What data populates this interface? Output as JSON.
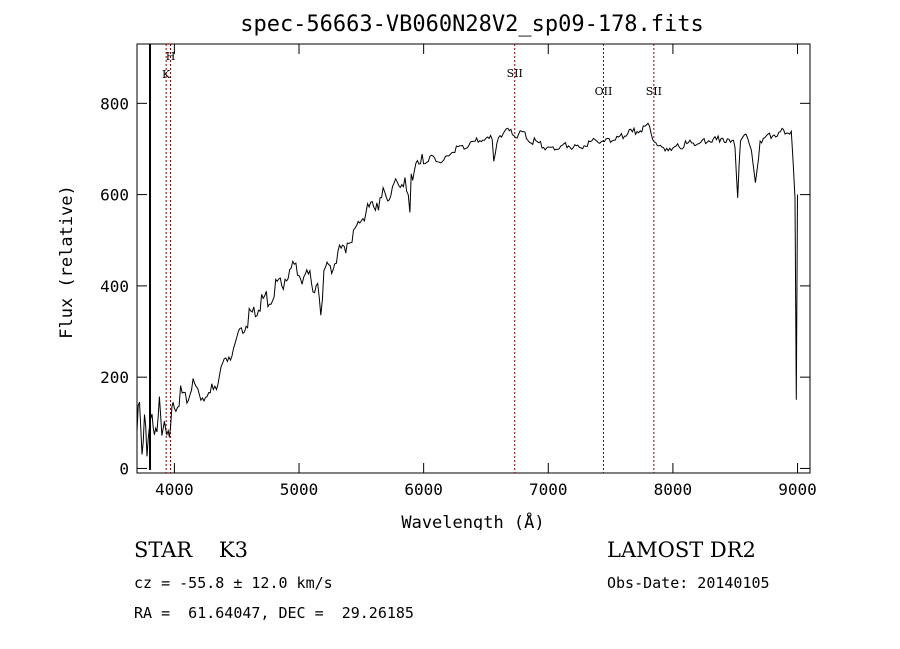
{
  "chart_data": {
    "type": "line",
    "title": "spec-56663-VB060N28V2_sp09-178.fits",
    "xlabel": "Wavelength (Å)",
    "ylabel": "Flux (relative)",
    "xlim": [
      3700,
      9100
    ],
    "ylim": [
      -10,
      930
    ],
    "xticks": [
      4000,
      5000,
      6000,
      7000,
      8000,
      9000
    ],
    "yticks": [
      0,
      200,
      400,
      600,
      800
    ],
    "series": [
      {
        "x": [
          3700,
          3720,
          3740,
          3760,
          3780,
          3800,
          3820,
          3840,
          3860,
          3880,
          3900,
          3920,
          3940,
          3960,
          3980,
          4000,
          4050,
          4100,
          4150,
          4200,
          4250,
          4300,
          4350,
          4400,
          4450,
          4500,
          4550,
          4600,
          4650,
          4700,
          4750,
          4800,
          4850,
          4900,
          4950,
          5000,
          5050,
          5100,
          5150,
          5175,
          5200,
          5250,
          5300,
          5350,
          5400,
          5450,
          5500,
          5550,
          5600,
          5650,
          5700,
          5750,
          5800,
          5850,
          5890,
          5900,
          5950,
          6000,
          6050,
          6100,
          6150,
          6200,
          6250,
          6300,
          6350,
          6400,
          6450,
          6500,
          6550,
          6563,
          6600,
          6650,
          6700,
          6750,
          6800,
          6850,
          6900,
          6950,
          7000,
          7050,
          7100,
          7150,
          7200,
          7250,
          7300,
          7350,
          7400,
          7450,
          7500,
          7550,
          7600,
          7650,
          7700,
          7750,
          7800,
          7850,
          7900,
          7950,
          8000,
          8050,
          8100,
          8150,
          8200,
          8250,
          8300,
          8350,
          8400,
          8450,
          8498,
          8520,
          8542,
          8560,
          8600,
          8630,
          8662,
          8700,
          8750,
          8800,
          8850,
          8900,
          8950,
          8980,
          8990,
          9000
        ],
        "y": [
          80,
          140,
          60,
          110,
          50,
          90,
          120,
          70,
          100,
          130,
          80,
          110,
          60,
          90,
          120,
          140,
          160,
          150,
          180,
          165,
          150,
          170,
          200,
          230,
          250,
          280,
          310,
          330,
          340,
          360,
          370,
          390,
          400,
          420,
          440,
          430,
          420,
          410,
          400,
          340,
          420,
          440,
          460,
          480,
          500,
          520,
          550,
          570,
          580,
          590,
          600,
          610,
          620,
          640,
          550,
          650,
          660,
          670,
          680,
          680,
          670,
          690,
          700,
          700,
          710,
          715,
          720,
          720,
          725,
          670,
          730,
          735,
          740,
          730,
          735,
          720,
          715,
          710,
          700,
          700,
          705,
          710,
          705,
          700,
          710,
          715,
          720,
          715,
          720,
          725,
          730,
          735,
          740,
          745,
          750,
          720,
          700,
          705,
          700,
          705,
          710,
          715,
          710,
          715,
          720,
          720,
          725,
          715,
          710,
          590,
          725,
          720,
          730,
          700,
          620,
          720,
          725,
          730,
          735,
          740,
          735,
          600,
          150,
          600
        ]
      }
    ],
    "lines": [
      {
        "label": "H",
        "x": 3969,
        "color": "#8b0000"
      },
      {
        "label": "K",
        "x": 3934,
        "color": "#8b0000"
      },
      {
        "label": "SII",
        "x": 6731,
        "color": "#8b0000"
      },
      {
        "label": "OII",
        "x": 7443,
        "color": "#8b0000"
      },
      {
        "label": "SII",
        "x": 7847,
        "color": "#8b0000"
      }
    ],
    "grid": false,
    "legend": "none"
  },
  "info": {
    "class": "STAR    K3",
    "survey": "LAMOST DR2",
    "cz": "cz = -55.8 ± 12.0 km/s",
    "obs_date": "Obs-Date: 20140105",
    "coords": "RA =  61.64047, DEC =  29.26185"
  }
}
